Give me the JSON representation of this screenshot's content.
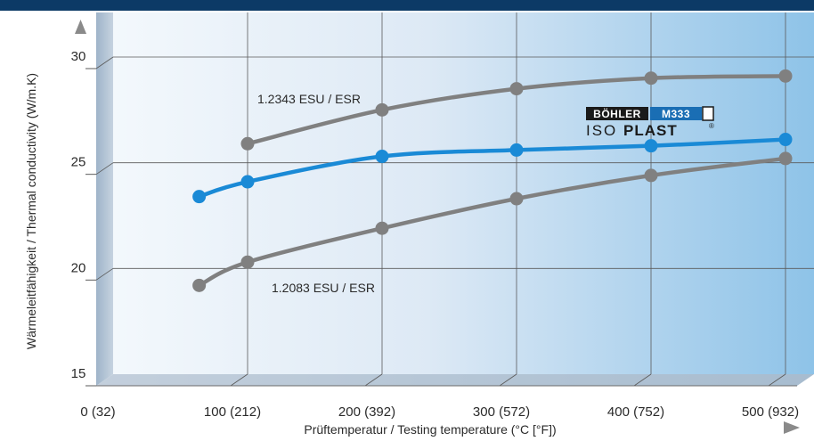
{
  "chart_data": {
    "type": "line",
    "xlabel": "Prüftemperatur / Testing temperature (°C [°F])",
    "ylabel": "Wärmeleitfähigkeit / Thermal conductivity (W/m.K)",
    "x_tick_labels": [
      "0 (32)",
      "100 (212)",
      "200 (392)",
      "300 (572)",
      "400 (752)",
      "500 (932)"
    ],
    "x_ticks": [
      0,
      100,
      200,
      300,
      400,
      500
    ],
    "y_ticks": [
      15,
      20,
      25,
      30
    ],
    "xlim": [
      0,
      500
    ],
    "ylim": [
      15,
      30
    ],
    "grid": true,
    "series": [
      {
        "name": "1.2343 ESU / ESR",
        "color": "#808080",
        "x": [
          100,
          200,
          300,
          400,
          500
        ],
        "values": [
          25.9,
          27.5,
          28.5,
          29.0,
          29.1
        ]
      },
      {
        "name": "BÖHLER M333 ISOPLAST",
        "color": "#1a8ad6",
        "x": [
          64,
          100,
          200,
          300,
          400,
          500
        ],
        "values": [
          23.4,
          24.1,
          25.3,
          25.6,
          25.8,
          26.1
        ]
      },
      {
        "name": "1.2083 ESU / ESR",
        "color": "#808080",
        "x": [
          64,
          100,
          200,
          300,
          400,
          500
        ],
        "values": [
          19.2,
          20.3,
          21.9,
          23.3,
          24.4,
          25.2
        ]
      }
    ],
    "logo": {
      "brand": "BÖHLER",
      "grade": "M333",
      "product_prefix": "ISO",
      "product_suffix": "PLAST",
      "mark": "®"
    }
  }
}
